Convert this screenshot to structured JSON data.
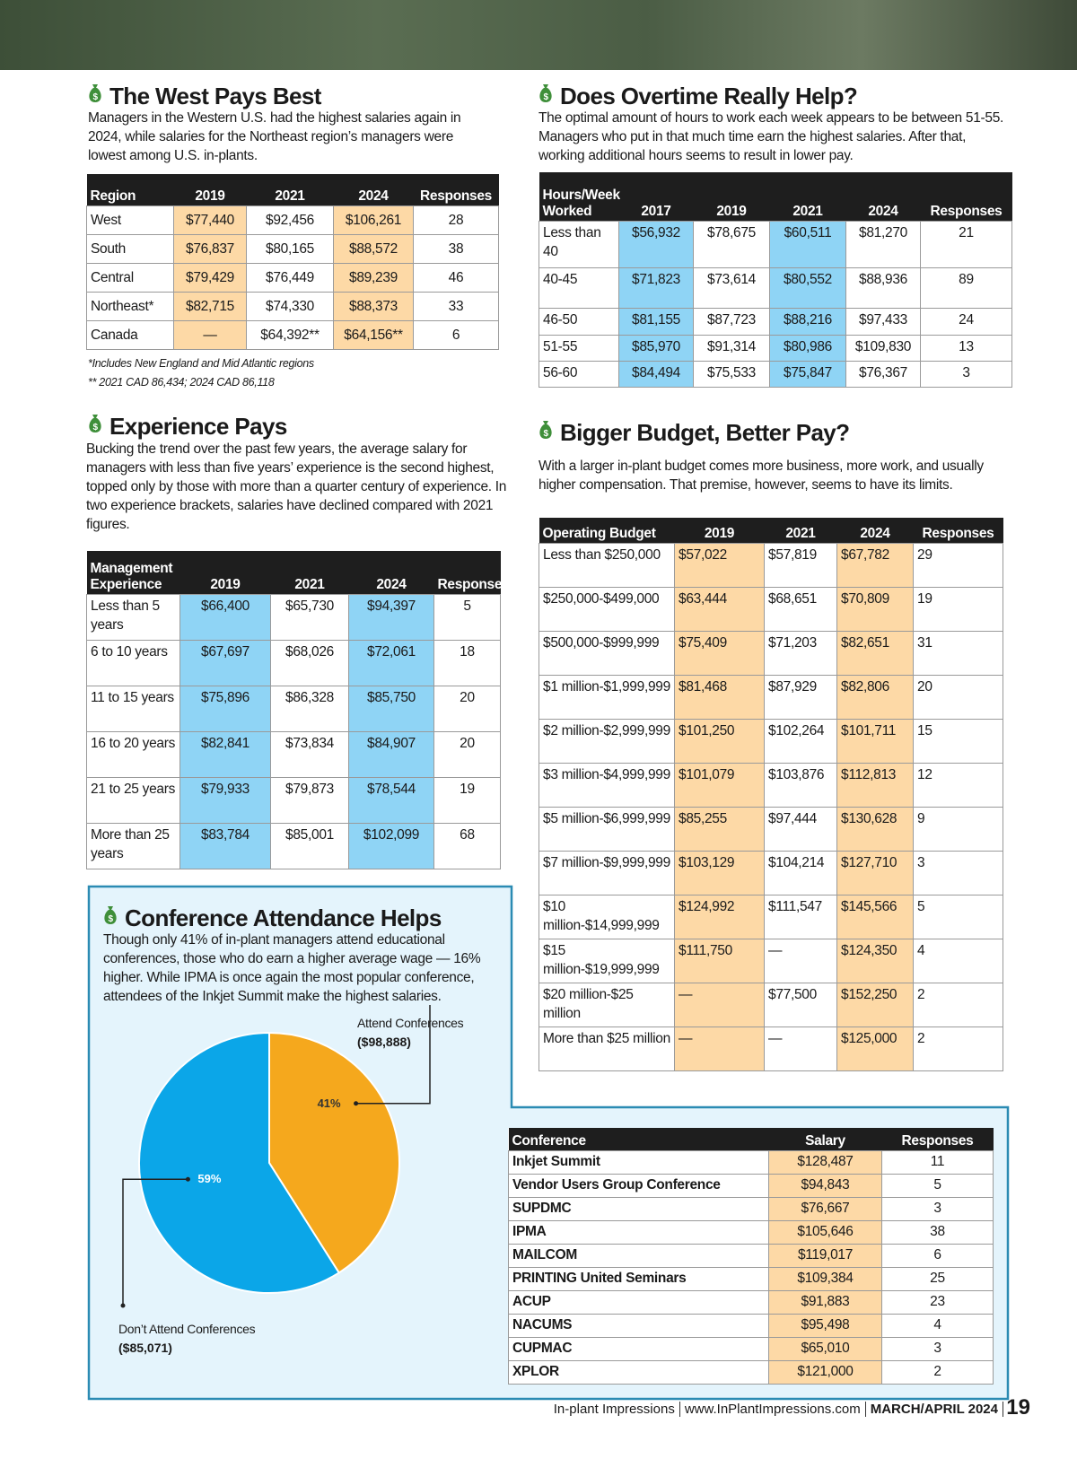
{
  "west": {
    "title": "The West Pays Best",
    "text": "Managers in the Western U.S. had the highest salaries again in 2024, while salaries for the Northeast region’s managers were lowest among U.S. in-plants.",
    "table": {
      "header": [
        "Region",
        "2019",
        "2021",
        "2024",
        "Responses"
      ],
      "rows": [
        [
          "West",
          "$77,440",
          "$92,456",
          "$106,261",
          "28"
        ],
        [
          "South",
          "$76,837",
          "$80,165",
          "$88,572",
          "38"
        ],
        [
          "Central",
          "$79,429",
          "$76,449",
          "$89,239",
          "46"
        ],
        [
          "Northeast*",
          "$82,715",
          "$74,330",
          "$88,373",
          "33"
        ],
        [
          "Canada",
          "—",
          "$64,392**",
          "$64,156**",
          "6"
        ]
      ],
      "highlight_columns": [
        1,
        3
      ],
      "highlight_color": "#fdd9a6"
    },
    "footnotes": [
      "*Includes New England and Mid Atlantic regions",
      "** 2021 CAD 86,434; 2024 CAD 86,118"
    ]
  },
  "overtime": {
    "title": "Does Overtime Really Help?",
    "text": "The optimal amount of hours to work each week appears to be between 51-55. Managers who put in that much time earn the highest salaries. After that, working additional hours seems to result in lower pay.",
    "table": {
      "header": [
        "Hours/Week Worked",
        "2017",
        "2019",
        "2021",
        "2024",
        "Responses"
      ],
      "rows": [
        [
          "Less than 40",
          "$56,932",
          "$78,675",
          "$60,511",
          "$81,270",
          "21"
        ],
        [
          "40-45",
          "$71,823",
          "$73,614",
          "$80,552",
          "$88,936",
          "89"
        ],
        [
          "46-50",
          "$81,155",
          "$87,723",
          "$88,216",
          "$97,433",
          "24"
        ],
        [
          "51-55",
          "$85,970",
          "$91,314",
          "$80,986",
          "$109,830",
          "13"
        ],
        [
          "56-60",
          "$84,494",
          "$75,533",
          "$75,847",
          "$76,367",
          "3"
        ]
      ],
      "highlight_columns": [
        1,
        3
      ],
      "highlight_color": "#8fd4f5"
    }
  },
  "experience": {
    "title": "Experience Pays",
    "text": "Bucking the trend over the past few years, the average salary for managers with less than five years’ experience is the second highest, topped only by those with more than a quarter century of experience. In two experience brackets, salaries have declined compared with 2021 figures.",
    "table": {
      "header": [
        "Management Experience",
        "2019",
        "2021",
        "2024",
        "Responses"
      ],
      "rows": [
        [
          "Less than 5 years",
          "$66,400",
          "$65,730",
          "$94,397",
          "5"
        ],
        [
          "6 to 10 years",
          "$67,697",
          "$68,026",
          "$72,061",
          "18"
        ],
        [
          "11 to 15 years",
          "$75,896",
          "$86,328",
          "$85,750",
          "20"
        ],
        [
          "16 to 20 years",
          "$82,841",
          "$73,834",
          "$84,907",
          "20"
        ],
        [
          "21 to 25 years",
          "$79,933",
          "$79,873",
          "$78,544",
          "19"
        ],
        [
          "More than 25 years",
          "$83,784",
          "$85,001",
          "$102,099",
          "68"
        ]
      ],
      "highlight_columns": [
        1,
        3
      ],
      "highlight_color": "#8fd4f5"
    }
  },
  "budget": {
    "title": "Bigger Budget, Better Pay?",
    "text": "With a larger in-plant budget comes more business, more work, and usually higher compensation. That premise, however, seems to have its limits.",
    "table": {
      "header": [
        "Operating Budget",
        "2019",
        "2021",
        "2024",
        "Responses"
      ],
      "rows": [
        [
          "Less than $250,000",
          "$57,022",
          "$57,819",
          "$67,782",
          "29"
        ],
        [
          "$250,000-$499,000",
          "$63,444",
          "$68,651",
          "$70,809",
          "19"
        ],
        [
          "$500,000-$999,999",
          "$75,409",
          "$71,203",
          "$82,651",
          "31"
        ],
        [
          "$1 million-$1,999,999",
          "$81,468",
          "$87,929",
          "$82,806",
          "20"
        ],
        [
          "$2 million-$2,999,999",
          "$101,250",
          "$102,264",
          "$101,711",
          "15"
        ],
        [
          "$3 million-$4,999,999",
          "$101,079",
          "$103,876",
          "$112,813",
          "12"
        ],
        [
          "$5 million-$6,999,999",
          "$85,255",
          "$97,444",
          "$130,628",
          "9"
        ],
        [
          "$7 million-$9,999,999",
          "$103,129",
          "$104,214",
          "$127,710",
          "3"
        ],
        [
          "$10 million-$14,999,999",
          "$124,992",
          "$111,547",
          "$145,566",
          "5"
        ],
        [
          "$15 million-$19,999,999",
          "$111,750",
          "—",
          "$124,350",
          "4"
        ],
        [
          "$20 million-$25 million",
          "—",
          "$77,500",
          "$152,250",
          "2"
        ],
        [
          "More than $25 million",
          "—",
          "—",
          "$125,000",
          "2"
        ]
      ],
      "highlight_columns": [
        1,
        3
      ],
      "highlight_color": "#fdd9a6"
    }
  },
  "conference": {
    "title": "Conference Attendance Helps",
    "text": "Though only 41% of in-plant managers attend educational conferences, those who do earn a higher average wage — 16% higher. While IPMA is once again the most popular conference, attendees of the Inkjet Summit make the highest salaries.",
    "pie": {
      "type": "pie",
      "values": [
        41,
        59
      ],
      "value_labels": [
        "41%",
        "59%"
      ],
      "colors": [
        "#f5a81d",
        "#0ba6e8"
      ],
      "labels": [
        {
          "name": "Attend Conferences",
          "amount": "($98,888)"
        },
        {
          "name": "Don’t Attend Conferences",
          "amount": "($85,071)"
        }
      ]
    },
    "table": {
      "header": [
        "Conference",
        "Salary",
        "Responses"
      ],
      "rows": [
        [
          "Inkjet Summit",
          "$128,487",
          "11"
        ],
        [
          "Vendor Users Group Conference",
          "$94,843",
          "5"
        ],
        [
          "SUPDMC",
          "$76,667",
          "3"
        ],
        [
          "IPMA",
          "$105,646",
          "38"
        ],
        [
          "MAILCOM",
          "$119,017",
          "6"
        ],
        [
          "PRINTING United Seminars",
          "$109,384",
          "25"
        ],
        [
          "ACUP",
          "$91,883",
          "23"
        ],
        [
          "NACUMS",
          "$95,498",
          "4"
        ],
        [
          "CUPMAC",
          "$65,010",
          "3"
        ],
        [
          "XPLOR",
          "$121,000",
          "2"
        ]
      ],
      "highlight_columns": [
        1
      ],
      "highlight_color": "#fdd9a6"
    }
  },
  "footer": {
    "publication": "In-plant Impressions",
    "website": "www.InPlantImpressions.com",
    "issue": "MARCH/APRIL 2024",
    "page": "19"
  }
}
